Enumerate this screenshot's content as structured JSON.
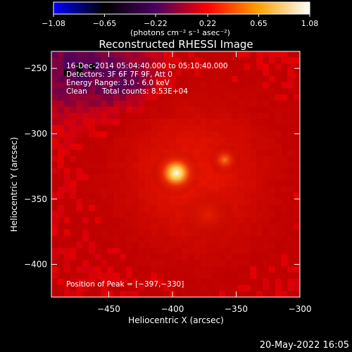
{
  "chart_data": {
    "type": "heatmap",
    "title": "Reconstructed RHESSI Image",
    "xlabel": "Heliocentric X (arcsec)",
    "ylabel": "Heliocentric Y (arcsec)",
    "xlim": [
      -495,
      -300
    ],
    "ylim": [
      -425,
      -237
    ],
    "x_ticks": [
      -450,
      -400,
      -350,
      -300
    ],
    "y_ticks": [
      -400,
      -350,
      -300,
      -250
    ],
    "x_tick_labels": [
      "−450",
      "−400",
      "−350",
      "−300"
    ],
    "y_tick_labels": [
      "−400",
      "−350",
      "−300",
      "−250"
    ],
    "colorbar": {
      "range": [
        -1.08,
        1.08
      ],
      "ticks": [
        -1.08,
        -0.65,
        -0.22,
        0.22,
        0.65,
        1.08
      ],
      "tick_labels": [
        "−1.08",
        "−0.65",
        "−0.22",
        "0.22",
        "0.65",
        "1.08"
      ],
      "unit_text": "(photons cm⁻² s⁻¹ asec⁻²)",
      "stops": [
        "#0000ff",
        "#000000",
        "#4a0060",
        "#ff0000",
        "#ffa000",
        "#ffffff"
      ]
    },
    "annotations": {
      "time_range": "16-Dec-2014 05:04:40.000 to 05:10:40.000",
      "detectors": "Detectors: 3F 6F 7F 9F, Att 0",
      "energy": "Energy Range: 3.0 - 6.0 keV",
      "method": "Clean",
      "counts": "Total counts: 8.53E+04",
      "peak": "Position of Peak = [−397,−330]"
    },
    "sources": [
      {
        "x": -397,
        "y": -330,
        "intensity": 1.08
      },
      {
        "x": -359,
        "y": -320,
        "intensity": 0.55
      },
      {
        "x": -372,
        "y": -362,
        "intensity": 0.34
      }
    ],
    "background_level": 0.22,
    "footer_date": "20-May-2022 16:05"
  }
}
